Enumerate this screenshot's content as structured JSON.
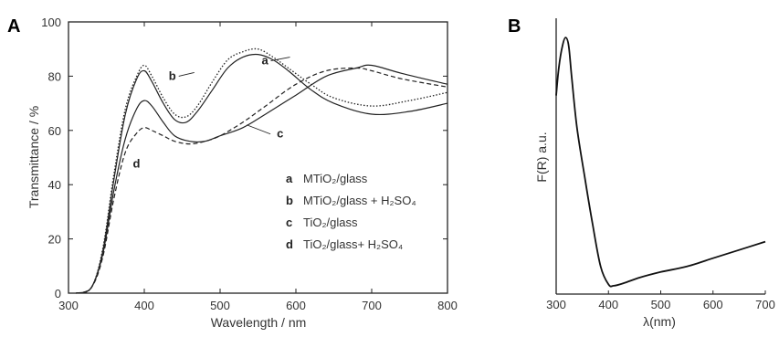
{
  "chart_data": [
    {
      "panel": "A",
      "type": "line",
      "xlabel": "Wavelength / nm",
      "ylabel": "Transmittance / %",
      "xlim": [
        300,
        800
      ],
      "ylim": [
        0,
        100
      ],
      "x_ticks": [
        "300",
        "400",
        "500",
        "600",
        "700",
        "800"
      ],
      "y_ticks": [
        "0",
        "20",
        "40",
        "60",
        "80",
        "100"
      ],
      "legend": [
        {
          "letter": "a",
          "text": "MTiO₂/glass",
          "style": "solid"
        },
        {
          "letter": "b",
          "text": "MTiO₂/glass + H₂SO₄",
          "style": "dotted"
        },
        {
          "letter": "c",
          "text": "TiO₂/glass",
          "style": "solid"
        },
        {
          "letter": "d",
          "text": "TiO₂/glass+ H₂SO₄",
          "style": "dashed"
        }
      ],
      "series": [
        {
          "letter": "a",
          "style": "solid",
          "x": [
            310,
            330,
            345,
            360,
            375,
            390,
            400,
            410,
            425,
            440,
            455,
            470,
            490,
            510,
            530,
            550,
            570,
            590,
            620,
            650,
            700,
            750,
            800
          ],
          "y": [
            0,
            2,
            15,
            42,
            66,
            79,
            82,
            78,
            70,
            64,
            63,
            67,
            75,
            83,
            87,
            88,
            86,
            82,
            75,
            70,
            66,
            67,
            70
          ]
        },
        {
          "letter": "b",
          "style": "dotted",
          "x": [
            310,
            330,
            345,
            360,
            375,
            390,
            400,
            410,
            425,
            440,
            455,
            470,
            490,
            510,
            530,
            550,
            570,
            590,
            620,
            650,
            700,
            750,
            800
          ],
          "y": [
            0,
            2,
            16,
            44,
            68,
            80,
            84,
            80,
            72,
            66,
            65,
            69,
            78,
            86,
            89,
            90,
            87,
            83,
            77,
            72,
            69,
            71,
            74
          ]
        },
        {
          "letter": "c",
          "style": "solid",
          "x": [
            310,
            330,
            345,
            360,
            375,
            390,
            400,
            410,
            425,
            440,
            460,
            480,
            500,
            530,
            560,
            600,
            640,
            680,
            700,
            740,
            800
          ],
          "y": [
            0,
            2,
            14,
            38,
            57,
            68,
            71,
            69,
            63,
            58,
            56,
            56,
            58,
            61,
            66,
            73,
            80,
            83,
            84,
            81,
            77
          ]
        },
        {
          "letter": "d",
          "style": "dashed",
          "x": [
            310,
            330,
            345,
            360,
            375,
            390,
            400,
            410,
            425,
            440,
            460,
            480,
            500,
            530,
            560,
            600,
            640,
            680,
            700,
            740,
            800
          ],
          "y": [
            0,
            2,
            13,
            35,
            52,
            59,
            61,
            60,
            58,
            56,
            55,
            56,
            58,
            63,
            69,
            77,
            82,
            83,
            82,
            79,
            76
          ]
        }
      ],
      "curve_labels": [
        {
          "letter": "a",
          "x": 597,
          "y": 85
        },
        {
          "letter": "b",
          "x": 478,
          "y": 80
        },
        {
          "letter": "c",
          "x": 617,
          "y": 58
        },
        {
          "letter": "d",
          "x": 462,
          "y": 49
        }
      ]
    },
    {
      "panel": "B",
      "type": "line",
      "xlabel": "λ(nm)",
      "ylabel": "F(R) a.u.",
      "xlim": [
        300,
        700
      ],
      "x_ticks": [
        "300",
        "400",
        "500",
        "600",
        "700"
      ],
      "series": [
        {
          "x": [
            300,
            305,
            312,
            318,
            324,
            330,
            340,
            355,
            370,
            385,
            400,
            410,
            430,
            460,
            500,
            550,
            600,
            650,
            700
          ],
          "y": [
            0.72,
            0.82,
            0.9,
            0.93,
            0.9,
            0.78,
            0.6,
            0.42,
            0.25,
            0.1,
            0.035,
            0.03,
            0.04,
            0.06,
            0.08,
            0.1,
            0.13,
            0.16,
            0.19
          ]
        }
      ]
    }
  ],
  "panels": {
    "a": {
      "letter": "A"
    },
    "b": {
      "letter": "B"
    }
  }
}
